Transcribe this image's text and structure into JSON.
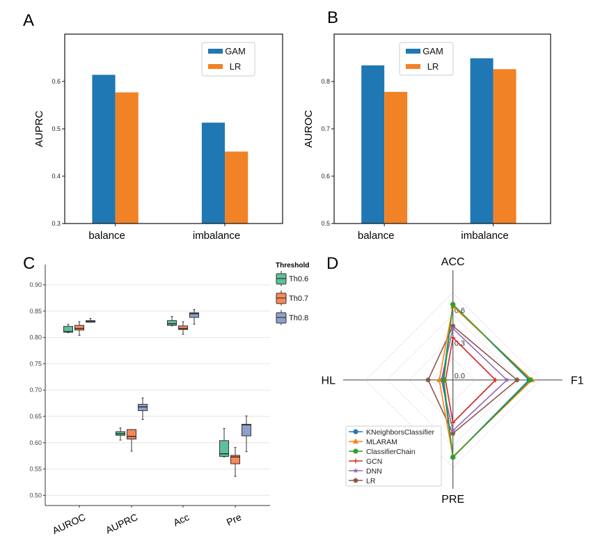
{
  "figure": {
    "panel_labels": [
      "A",
      "B",
      "C",
      "D"
    ]
  },
  "chart_data": [
    {
      "id": "A",
      "type": "bar",
      "title": "",
      "xlabel": "",
      "ylabel": "AUPRC",
      "categories": [
        "balance",
        "imbalance"
      ],
      "series": [
        {
          "name": "GAM",
          "color": "#1f77b4",
          "values": [
            0.614,
            0.513
          ]
        },
        {
          "name": "LR",
          "color": "#f28226",
          "values": [
            0.577,
            0.452
          ]
        }
      ],
      "ylim": [
        0.3,
        0.7
      ],
      "yticks": [
        0.3,
        0.4,
        0.5,
        0.6
      ],
      "ytick_labels": [
        "0.3",
        "0.4",
        "0.5",
        "0.6"
      ],
      "legend": "top-right",
      "grid": false
    },
    {
      "id": "B",
      "type": "bar",
      "title": "",
      "xlabel": "",
      "ylabel": "AUROC",
      "categories": [
        "balance",
        "imbalance"
      ],
      "series": [
        {
          "name": "GAM",
          "color": "#1f77b4",
          "values": [
            0.834,
            0.849
          ]
        },
        {
          "name": "LR",
          "color": "#f28226",
          "values": [
            0.778,
            0.826
          ]
        }
      ],
      "ylim": [
        0.5,
        0.9
      ],
      "yticks": [
        0.5,
        0.6,
        0.7,
        0.8
      ],
      "ytick_labels": [
        "0.5",
        "0.6",
        "0.7",
        "0.8"
      ],
      "legend": "top-center",
      "grid": false
    },
    {
      "id": "C",
      "type": "box",
      "title": "",
      "xlabel": "",
      "ylabel": "",
      "categories": [
        "AUROC",
        "AUPRC",
        "Acc",
        "Pre"
      ],
      "legend_title": "Threshold",
      "legend": "top-right-outside",
      "grid": true,
      "ylim": [
        0.48,
        0.93
      ],
      "yticks": [
        0.5,
        0.55,
        0.6,
        0.65,
        0.7,
        0.75,
        0.8,
        0.85,
        0.9
      ],
      "ytick_labels": [
        "0.50",
        "0.55",
        "0.60",
        "0.65",
        "0.70",
        "0.75",
        "0.80",
        "0.85",
        "0.90"
      ],
      "series": [
        {
          "name": "Th0.6",
          "color": "#5cc19a",
          "boxes": [
            {
              "min": 0.809,
              "q1": 0.81,
              "median": 0.811,
              "q3": 0.821,
              "max": 0.825
            },
            {
              "min": 0.605,
              "q1": 0.614,
              "median": 0.617,
              "q3": 0.621,
              "max": 0.628
            },
            {
              "min": 0.822,
              "q1": 0.823,
              "median": 0.826,
              "q3": 0.832,
              "max": 0.84
            },
            {
              "min": 0.573,
              "q1": 0.574,
              "median": 0.579,
              "q3": 0.604,
              "max": 0.627
            }
          ]
        },
        {
          "name": "Th0.7",
          "color": "#f8875a",
          "boxes": [
            {
              "min": 0.804,
              "q1": 0.814,
              "median": 0.817,
              "q3": 0.823,
              "max": 0.83
            },
            {
              "min": 0.584,
              "q1": 0.607,
              "median": 0.612,
              "q3": 0.625,
              "max": 0.625
            },
            {
              "min": 0.806,
              "q1": 0.815,
              "median": 0.817,
              "q3": 0.822,
              "max": 0.83
            },
            {
              "min": 0.536,
              "q1": 0.56,
              "median": 0.573,
              "q3": 0.576,
              "max": 0.591
            }
          ]
        },
        {
          "name": "Th0.8",
          "color": "#8da0cb",
          "boxes": [
            {
              "min": 0.829,
              "q1": 0.829,
              "median": 0.83,
              "q3": 0.832,
              "max": 0.836
            },
            {
              "min": 0.644,
              "q1": 0.661,
              "median": 0.668,
              "q3": 0.673,
              "max": 0.685
            },
            {
              "min": 0.825,
              "q1": 0.838,
              "median": 0.845,
              "q3": 0.847,
              "max": 0.853
            },
            {
              "min": 0.583,
              "q1": 0.613,
              "median": 0.634,
              "q3": 0.635,
              "max": 0.651
            }
          ]
        }
      ]
    },
    {
      "id": "D",
      "type": "radar",
      "title": "",
      "axes": [
        "ACC",
        "F1",
        "PRE",
        "HL"
      ],
      "rlim": [
        0.0,
        0.8
      ],
      "rgrid_rings": [
        0.2,
        0.4,
        0.6,
        0.8
      ],
      "rtick_labels": [
        {
          "value": 0.0,
          "label": "0.0"
        },
        {
          "value": 0.3,
          "label": "0.3"
        },
        {
          "value": 0.6,
          "label": "0.6"
        }
      ],
      "legend": "lower-left",
      "series": [
        {
          "name": "KNeighborsClassifier",
          "color": "#1f77b4",
          "marker": "circle",
          "values": [
            0.69,
            0.696,
            0.705,
            0.092
          ]
        },
        {
          "name": "MLARAM",
          "color": "#ff7f0e",
          "marker": "triangle",
          "values": [
            0.673,
            0.723,
            0.7,
            0.125
          ]
        },
        {
          "name": "ClassifierChain",
          "color": "#2ca02c",
          "marker": "circle",
          "values": [
            0.69,
            0.707,
            0.707,
            0.083
          ]
        },
        {
          "name": "GCN",
          "color": "#d62728",
          "marker": "plus",
          "values": [
            0.387,
            0.389,
            0.389,
            0.068
          ]
        },
        {
          "name": "DNN",
          "color": "#9467bd",
          "marker": "star",
          "values": [
            0.47,
            0.494,
            0.462,
            0.106
          ]
        },
        {
          "name": "LR",
          "color": "#8c564b",
          "marker": "pentagon",
          "values": [
            0.493,
            0.586,
            0.488,
            0.227
          ]
        }
      ]
    }
  ]
}
